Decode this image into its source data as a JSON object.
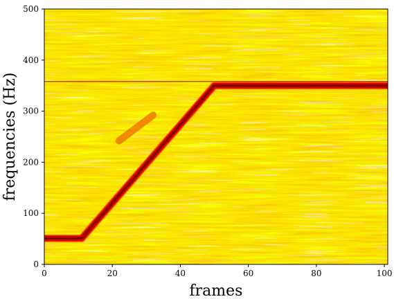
{
  "chart_data": {
    "type": "heatmap",
    "title": "",
    "xlabel": "frames",
    "ylabel": "frequencies (Hz)",
    "xlim": [
      0,
      101
    ],
    "ylim": [
      0,
      500
    ],
    "x_ticks": [
      0,
      20,
      40,
      60,
      80,
      100
    ],
    "y_ticks": [
      0,
      100,
      200,
      300,
      400,
      500
    ],
    "colormap": "jet",
    "background_colors": [
      "#8ff57a",
      "#e4f520",
      "#f5d000",
      "#f5b800",
      "#f5a300"
    ],
    "series": [
      {
        "kind": "tone",
        "points": [
          [
            0,
            51
          ],
          [
            11,
            51
          ],
          [
            50,
            350
          ],
          [
            101,
            350
          ]
        ],
        "band_hz": 10,
        "color": "#7a0000"
      },
      {
        "kind": "spur",
        "points": [
          [
            0,
            358
          ],
          [
            101,
            358
          ]
        ],
        "band_hz": 2,
        "color": "#b83a00"
      },
      {
        "kind": "artifact",
        "points": [
          [
            22,
            242
          ],
          [
            32,
            292
          ]
        ],
        "band_hz": 14,
        "color": "#f07a00"
      }
    ],
    "grid": false,
    "legend": "none"
  }
}
